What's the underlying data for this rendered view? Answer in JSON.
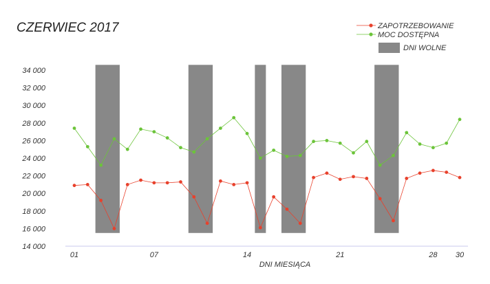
{
  "chart_data": {
    "type": "line",
    "title": "CZERWIEC 2017",
    "xlabel": "DNI MIESIĄCA",
    "ylabel": "",
    "ylim": [
      14000,
      35000
    ],
    "xlim": [
      1,
      30
    ],
    "y_ticks": [
      14000,
      16000,
      18000,
      20000,
      22000,
      24000,
      26000,
      28000,
      30000,
      32000,
      34000
    ],
    "y_tick_labels": [
      "14 000",
      "16 000",
      "18 000",
      "20 000",
      "22 000",
      "24 000",
      "26 000",
      "28 000",
      "30 000",
      "32 000",
      "34 000"
    ],
    "x_ticks": [
      1,
      7,
      14,
      21,
      28,
      30
    ],
    "x_tick_labels": [
      "01",
      "07",
      "14",
      "21",
      "28",
      "30"
    ],
    "x": [
      1,
      2,
      3,
      4,
      5,
      6,
      7,
      8,
      9,
      10,
      11,
      12,
      13,
      14,
      15,
      16,
      17,
      18,
      19,
      20,
      21,
      22,
      23,
      24,
      25,
      26,
      27,
      28,
      29,
      30
    ],
    "series": [
      {
        "name": "ZAPOTRZEBOWANIE",
        "color": "#e8412c",
        "values": [
          20900,
          21000,
          19200,
          16000,
          21000,
          21500,
          21200,
          21200,
          21300,
          19600,
          16600,
          21400,
          21000,
          21200,
          16100,
          19600,
          18200,
          16600,
          21800,
          22300,
          21600,
          21900,
          21700,
          19400,
          16900,
          21700,
          22300,
          22600,
          22400,
          21800
        ]
      },
      {
        "name": "MOC DOSTĘPNA",
        "color": "#6cc43a",
        "values": [
          27400,
          25300,
          23200,
          26200,
          25000,
          27300,
          27000,
          26300,
          25200,
          24700,
          26200,
          27400,
          28600,
          26800,
          24000,
          24900,
          24200,
          24300,
          25900,
          26000,
          25700,
          24600,
          25900,
          23200,
          24300,
          26900,
          25600,
          25200,
          25700,
          28400
        ]
      }
    ],
    "bands": {
      "name": "DNI WOLNE",
      "color": "#888888",
      "ranges": [
        [
          3,
          4
        ],
        [
          10,
          11
        ],
        [
          15,
          15
        ],
        [
          17,
          18
        ],
        [
          24,
          25
        ]
      ],
      "ymin": 15500,
      "ymax": 34600
    },
    "legend_position": "top-right",
    "grid": false
  }
}
